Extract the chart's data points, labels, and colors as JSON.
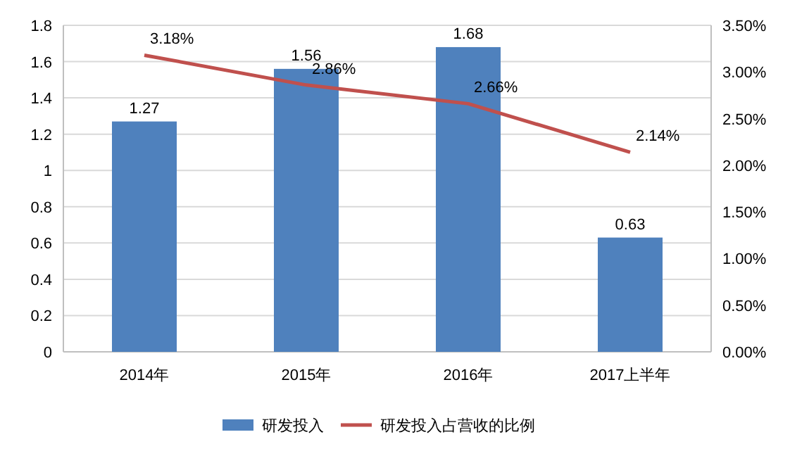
{
  "chart_data": {
    "type": "bar",
    "categories": [
      "2014年",
      "2015年",
      "2016年",
      "2017上半年"
    ],
    "series": [
      {
        "name": "研发投入",
        "color": "#4f81bd",
        "values": [
          1.27,
          1.56,
          1.68,
          0.63
        ],
        "value_labels": [
          "1.27",
          "1.56",
          "1.68",
          "0.63"
        ]
      },
      {
        "name": "研发投入占营收的比例",
        "type": "line",
        "axis": "y2",
        "color": "#c0504d",
        "values": [
          3.18,
          2.86,
          2.66,
          2.14
        ],
        "value_labels": [
          "3.18%",
          "2.86%",
          "2.66%",
          "2.14%"
        ]
      }
    ],
    "ylim": [
      0,
      1.8
    ],
    "yticks": [
      0,
      0.2,
      0.4,
      0.6,
      0.8,
      1,
      1.2,
      1.4,
      1.6,
      1.8
    ],
    "y2lim": [
      0,
      3.5
    ],
    "y2ticks": [
      {
        "value": 0,
        "label": "0.00%"
      },
      {
        "value": 0.5,
        "label": "0.50%"
      },
      {
        "value": 1,
        "label": "1.00%"
      },
      {
        "value": 1.5,
        "label": "1.50%"
      },
      {
        "value": 2,
        "label": "2.00%"
      },
      {
        "value": 2.5,
        "label": "2.50%"
      },
      {
        "value": 3,
        "label": "3.00%"
      },
      {
        "value": 3.5,
        "label": "3.50%"
      }
    ],
    "grid": "y",
    "legend": "bottom",
    "marker": "none",
    "line_style": "solid"
  }
}
